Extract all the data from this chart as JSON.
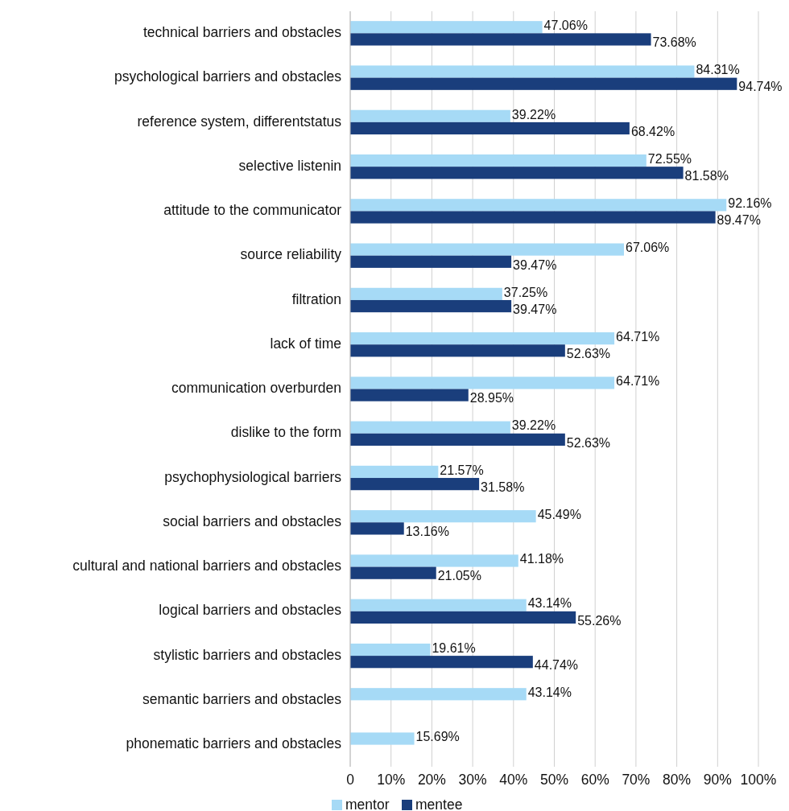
{
  "chart_data": {
    "type": "bar",
    "orientation": "horizontal",
    "categories": [
      "technical barriers and obstacles",
      "psychological barriers and obstacles",
      "reference system, differentstatus",
      "selective listenin",
      "attitude to the communicator",
      "source reliability",
      "filtration",
      "lack of time",
      "communication overburden",
      "dislike to the form",
      "psychophysiological barriers",
      "social barriers and obstacles",
      "cultural and national barriers and obstacles",
      "logical barriers and obstacles",
      "stylistic barriers and obstacles",
      "semantic barriers and obstacles",
      "phonematic barriers and obstacles"
    ],
    "series": [
      {
        "name": "mentor",
        "color": "#a6daf6",
        "values": [
          47.06,
          84.31,
          39.22,
          72.55,
          92.16,
          67.06,
          37.25,
          64.71,
          64.71,
          39.22,
          21.57,
          45.49,
          41.18,
          43.14,
          19.61,
          43.14,
          15.69
        ],
        "value_labels": [
          "47.06%",
          "84.31%",
          "39.22%",
          "72.55%",
          "92.16%",
          "67.06%",
          "37.25%",
          "64.71%",
          "64.71%",
          "39.22%",
          "21.57%",
          "45.49%",
          "41.18%",
          "43.14%",
          "19.61%",
          "43.14%",
          "15.69%"
        ]
      },
      {
        "name": "mentee",
        "color": "#1a3e7c",
        "values": [
          73.68,
          94.74,
          68.42,
          81.58,
          89.47,
          39.47,
          39.47,
          52.63,
          28.95,
          52.63,
          31.58,
          13.16,
          21.05,
          55.26,
          44.74,
          null,
          null
        ],
        "value_labels": [
          "73.68%",
          "94.74%",
          "68.42%",
          "81.58%",
          "89.47%",
          "39.47%",
          "39.47%",
          "52.63%",
          "28.95%",
          "52.63%",
          "31.58%",
          "13.16%",
          "21.05%",
          "55.26%",
          "44.74%",
          null,
          null
        ]
      }
    ],
    "xlim": [
      0,
      100
    ],
    "xticks": [
      {
        "value": 0,
        "label": "0"
      },
      {
        "value": 10,
        "label": "10%"
      },
      {
        "value": 20,
        "label": "20%"
      },
      {
        "value": 30,
        "label": "30%"
      },
      {
        "value": 40,
        "label": "40%"
      },
      {
        "value": 50,
        "label": "50%"
      },
      {
        "value": 60,
        "label": "60%"
      },
      {
        "value": 70,
        "label": "70%"
      },
      {
        "value": 80,
        "label": "80%"
      },
      {
        "value": 90,
        "label": "90%"
      },
      {
        "value": 100,
        "label": "100%"
      }
    ],
    "grid": "x",
    "legend": "bottom"
  }
}
